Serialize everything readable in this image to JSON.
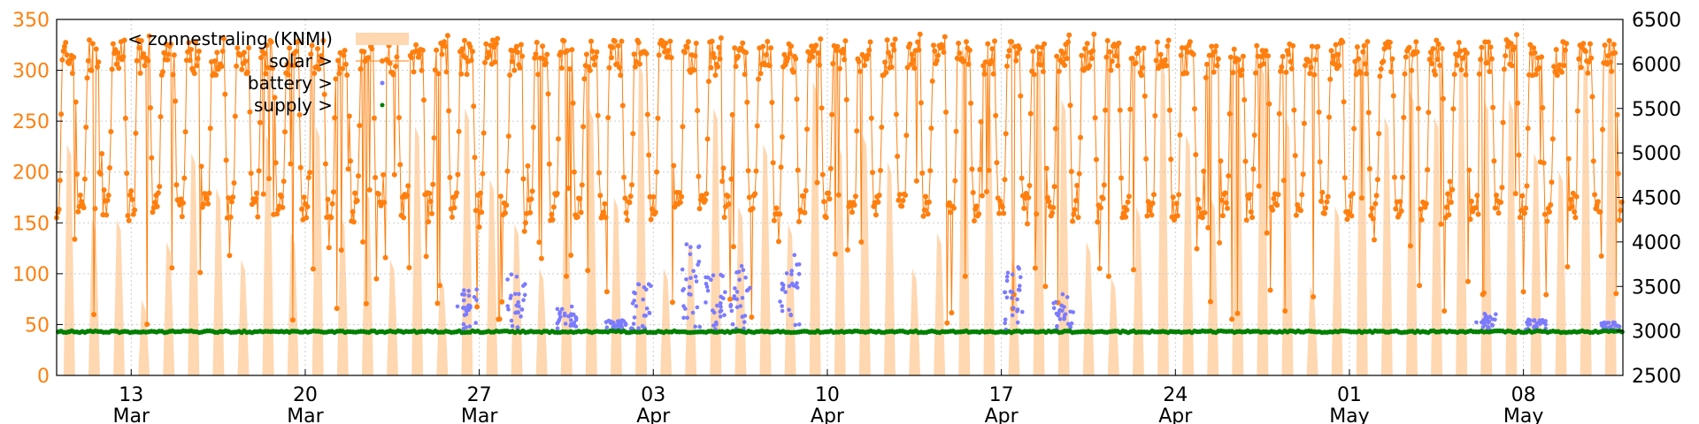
{
  "chart_data": {
    "type": "line",
    "title": "",
    "xlabel": "",
    "ylabel": "",
    "grid": true,
    "legend_placement": "top-left",
    "x_range": [
      "2024-03-10",
      "2024-05-12"
    ],
    "x_ticks": [
      {
        "date": "2024-03-13",
        "day": "13",
        "month": "Mar"
      },
      {
        "date": "2024-03-20",
        "day": "20",
        "month": "Mar"
      },
      {
        "date": "2024-03-27",
        "day": "27",
        "month": "Mar"
      },
      {
        "date": "2024-04-03",
        "day": "03",
        "month": "Apr"
      },
      {
        "date": "2024-04-10",
        "day": "10",
        "month": "Apr"
      },
      {
        "date": "2024-04-17",
        "day": "17",
        "month": "Apr"
      },
      {
        "date": "2024-04-24",
        "day": "24",
        "month": "Apr"
      },
      {
        "date": "2024-05-01",
        "day": "01",
        "month": "May"
      },
      {
        "date": "2024-05-08",
        "day": "08",
        "month": "May"
      }
    ],
    "y_left": {
      "range": [
        0,
        350
      ],
      "ticks": [
        0,
        50,
        100,
        150,
        200,
        250,
        300,
        350
      ],
      "color": "#ff7f0e"
    },
    "y_right": {
      "range": [
        2500,
        6500
      ],
      "ticks": [
        2500,
        3000,
        3500,
        4000,
        4500,
        5000,
        5500,
        6000,
        6500
      ],
      "color": "#000000"
    },
    "series": [
      {
        "name": "< zonnestraling (KNMI)",
        "axis": "right",
        "style": "area",
        "color": "#ffd7b0",
        "daily_peak": [
          5100,
          4250,
          4250,
          3350,
          4000,
          5000,
          4600,
          3800,
          5200,
          4100,
          5300,
          4300,
          4600,
          3800,
          5300,
          3600,
          5500,
          4700,
          4200,
          3700,
          4600,
          5500,
          4500,
          6000,
          3700,
          4000,
          5500,
          4400,
          5100,
          4200,
          5800,
          5100,
          5200,
          4900,
          3700,
          4100,
          6200,
          5600,
          3800,
          6000,
          5600,
          4000,
          3600,
          4400,
          6000,
          5200,
          4500,
          6100,
          6000,
          5400,
          3500,
          4400,
          6100,
          5400,
          5700,
          5400,
          6000,
          5600,
          5600,
          5000,
          4800,
          6000,
          6300,
          4900
        ]
      },
      {
        "name": "solar >",
        "axis": "left",
        "style": "line-points",
        "color": "#ff7f0e",
        "daytime_level": 320,
        "night_level": 155
      },
      {
        "name": "battery >",
        "axis": "left",
        "style": "points",
        "color": "#7b7bff",
        "baseline": 45,
        "events": [
          {
            "date": "2024-03-26",
            "max": 85
          },
          {
            "date": "2024-03-28",
            "max": 100
          },
          {
            "date": "2024-03-30",
            "max": 70
          },
          {
            "date": "2024-04-01",
            "max": 55
          },
          {
            "date": "2024-04-02",
            "max": 90
          },
          {
            "date": "2024-04-04",
            "max": 130
          },
          {
            "date": "2024-04-05",
            "max": 100
          },
          {
            "date": "2024-04-06",
            "max": 110
          },
          {
            "date": "2024-04-08",
            "max": 125
          },
          {
            "date": "2024-04-17",
            "max": 110
          },
          {
            "date": "2024-04-19",
            "max": 80
          },
          {
            "date": "2024-05-06",
            "max": 62
          },
          {
            "date": "2024-05-08",
            "max": 55
          },
          {
            "date": "2024-05-11",
            "max": 53
          }
        ]
      },
      {
        "name": "supply >",
        "axis": "left",
        "style": "points",
        "color": "#007f00",
        "value": 43
      }
    ]
  }
}
